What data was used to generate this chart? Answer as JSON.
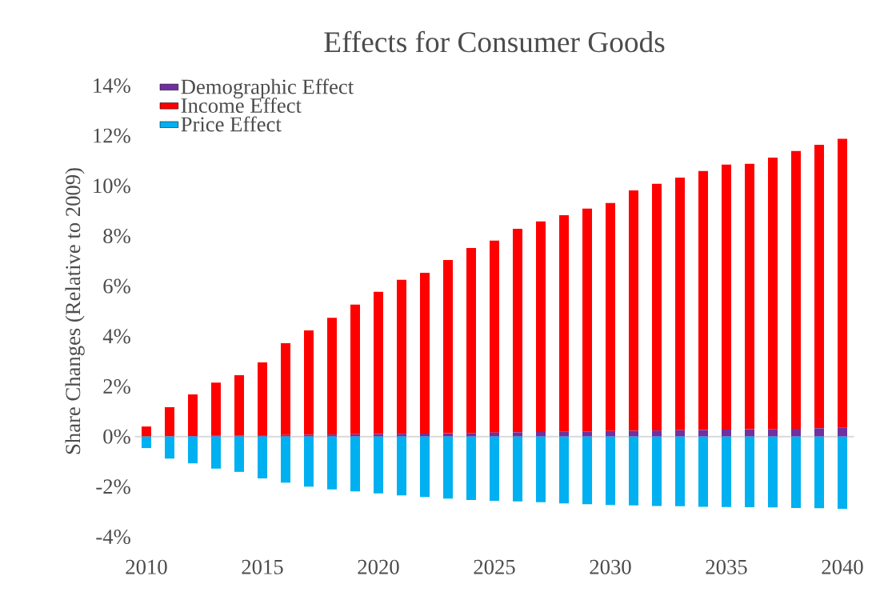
{
  "chart_data": {
    "type": "bar",
    "title": "Effects for Consumer Goods",
    "ylabel": "Share Changes (Relative to 2009)",
    "stacked": true,
    "legend": "top left",
    "categories": [
      "2010",
      null,
      null,
      null,
      null,
      "2015",
      null,
      null,
      null,
      null,
      "2020",
      null,
      null,
      null,
      null,
      "2025",
      null,
      null,
      null,
      null,
      "2030",
      null,
      null,
      null,
      null,
      "2035",
      null,
      null,
      null,
      null,
      "2040"
    ],
    "series": [
      {
        "name": "Demographic Effect",
        "color": "#7030a0",
        "values": [
          0.0,
          0.01,
          0.02,
          0.03,
          0.04,
          0.05,
          0.06,
          0.07,
          0.08,
          0.09,
          0.1,
          0.11,
          0.12,
          0.13,
          0.14,
          0.16,
          0.17,
          0.18,
          0.19,
          0.2,
          0.22,
          0.23,
          0.24,
          0.25,
          0.26,
          0.28,
          0.29,
          0.3,
          0.31,
          0.33,
          0.35
        ]
      },
      {
        "name": "Income Effect",
        "color": "#ff0000",
        "values": [
          0.4,
          1.16,
          1.66,
          2.12,
          2.41,
          2.91,
          3.66,
          4.16,
          4.66,
          5.17,
          5.67,
          6.14,
          6.41,
          6.91,
          7.38,
          7.66,
          8.12,
          8.4,
          8.64,
          8.89,
          9.1,
          9.59,
          9.84,
          10.08,
          10.33,
          10.57,
          10.59,
          10.83,
          11.08,
          11.31,
          11.53
        ]
      },
      {
        "name": "Price Effect",
        "color": "#00b0f0",
        "values": [
          -0.46,
          -0.88,
          -1.07,
          -1.28,
          -1.41,
          -1.67,
          -1.84,
          -2.0,
          -2.11,
          -2.19,
          -2.27,
          -2.35,
          -2.41,
          -2.48,
          -2.53,
          -2.56,
          -2.59,
          -2.62,
          -2.67,
          -2.7,
          -2.73,
          -2.75,
          -2.77,
          -2.78,
          -2.8,
          -2.81,
          -2.82,
          -2.83,
          -2.85,
          -2.86,
          -2.88
        ]
      }
    ],
    "ylim": [
      -4,
      14
    ],
    "yticks": [
      {
        "value": -4,
        "label": "-4%"
      },
      {
        "value": -2,
        "label": "-2%"
      },
      {
        "value": 0,
        "label": "0%"
      },
      {
        "value": 2,
        "label": "2%"
      },
      {
        "value": 4,
        "label": "4%"
      },
      {
        "value": 6,
        "label": "6%"
      },
      {
        "value": 8,
        "label": "8%"
      },
      {
        "value": 10,
        "label": "10%"
      },
      {
        "value": 12,
        "label": "12%"
      },
      {
        "value": 14,
        "label": "14%"
      }
    ]
  }
}
